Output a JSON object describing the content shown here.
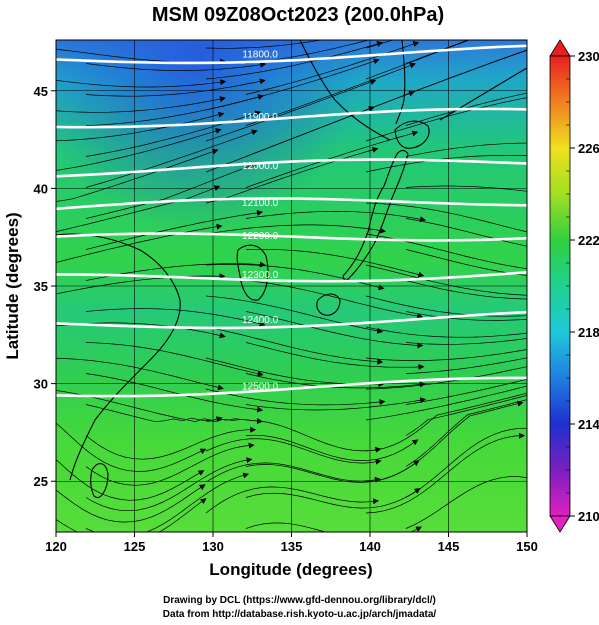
{
  "title": "MSM 09Z08Oct2023 (200.0hPa)",
  "x_axis": {
    "label": "Longitude (degrees)",
    "ticks": [
      120,
      125,
      130,
      135,
      140,
      145,
      150
    ],
    "range": [
      120,
      150
    ]
  },
  "y_axis": {
    "label": "Latitude  (degrees)",
    "ticks": [
      25,
      30,
      35,
      40,
      45
    ],
    "range": [
      22.4,
      47.6
    ]
  },
  "colorbar": {
    "ticks": [
      210,
      214,
      218,
      222,
      226,
      230
    ],
    "range": [
      210,
      230
    ]
  },
  "contours": [
    {
      "label": "11800.0",
      "lat": 46.6
    },
    {
      "label": "11900.0",
      "lat": 43.4
    },
    {
      "label": "12000.0",
      "lat": 40.9
    },
    {
      "label": "12100.0",
      "lat": 39.0
    },
    {
      "label": "12200.0",
      "lat": 37.3
    },
    {
      "label": "12300.0",
      "lat": 35.3
    },
    {
      "label": "12400.0",
      "lat": 33.0
    },
    {
      "label": "12500.0",
      "lat": 29.6
    }
  ],
  "credits": {
    "line1": "Drawing by DCL (https://www.gfd-dennou.org/library/dcl/)",
    "line2": "Data from http://database.rish.kyoto-u.ac.jp/arch/jmadata/"
  }
}
